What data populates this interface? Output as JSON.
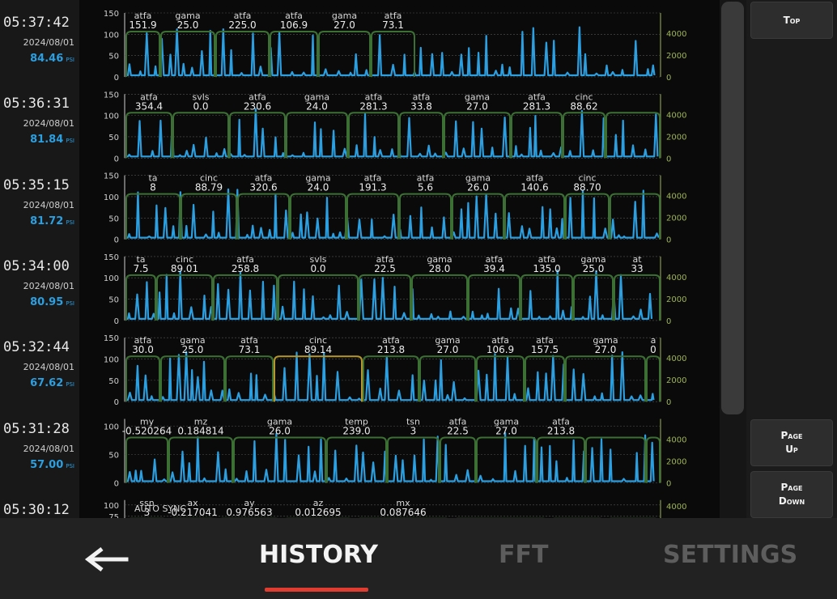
{
  "history_rows": [
    {
      "time": "05:37:42",
      "date": "2024/08/01",
      "pressure": "84.46",
      "unit": "PSI",
      "left_ticks": [
        "150",
        "100",
        "50",
        "0"
      ],
      "right_ticks": [
        "4000",
        "2000",
        "0"
      ],
      "names": [
        "atfa",
        "gama",
        "atfa",
        "atfa",
        "gama",
        "atfa"
      ],
      "values": [
        "151.9",
        "25.0",
        "225.0",
        "106.9",
        "27.0",
        "73.1"
      ]
    },
    {
      "time": "05:36:31",
      "date": "2024/08/01",
      "pressure": "81.84",
      "unit": "PSI",
      "left_ticks": [
        "150",
        "100",
        "50",
        "0"
      ],
      "right_ticks": [
        "4000",
        "2000",
        "0"
      ],
      "names": [
        "atfa",
        "svls",
        "atfa",
        "gama",
        "atfa",
        "atfa",
        "gama",
        "atfa",
        "cinc"
      ],
      "values": [
        "354.4",
        "0.0",
        "230.6",
        "24.0",
        "281.3",
        "33.8",
        "27.0",
        "281.3",
        "88.62"
      ]
    },
    {
      "time": "05:35:15",
      "date": "2024/08/01",
      "pressure": "81.72",
      "unit": "PSI",
      "left_ticks": [
        "150",
        "100",
        "50",
        "0"
      ],
      "right_ticks": [
        "4000",
        "2000",
        "0"
      ],
      "names": [
        "ta",
        "cinc",
        "atfa",
        "gama",
        "atfa",
        "atfa",
        "gama",
        "atfa",
        "cinc"
      ],
      "values": [
        "8",
        "88.79",
        "320.6",
        "24.0",
        "191.3",
        "5.6",
        "26.0",
        "140.6",
        "88.70"
      ]
    },
    {
      "time": "05:34:00",
      "date": "2024/08/01",
      "pressure": "80.95",
      "unit": "PSI",
      "left_ticks": [
        "150",
        "100",
        "50",
        "0"
      ],
      "right_ticks": [
        "4000",
        "2000",
        "0"
      ],
      "names": [
        "ta",
        "cinc",
        "atfa",
        "svls",
        "atfa",
        "gama",
        "atfa",
        "atfa",
        "gama",
        "at"
      ],
      "values": [
        "7.5",
        "89.01",
        "258.8",
        "0.0",
        "22.5",
        "28.0",
        "39.4",
        "135.0",
        "25.0",
        "33"
      ]
    },
    {
      "time": "05:32:44",
      "date": "2024/08/01",
      "pressure": "67.62",
      "unit": "PSI",
      "left_ticks": [
        "150",
        "100",
        "50",
        "0"
      ],
      "right_ticks": [
        "4000",
        "2000",
        "0"
      ],
      "names": [
        "atfa",
        "gama",
        "atfa",
        "cinc",
        "atfa",
        "gama",
        "atfa",
        "atfa",
        "gama",
        "a"
      ],
      "values": [
        "30.0",
        "25.0",
        "73.1",
        "89.14",
        "213.8",
        "27.0",
        "106.9",
        "157.5",
        "27.0",
        "0"
      ]
    },
    {
      "time": "05:31:28",
      "date": "2024/08/01",
      "pressure": "57.00",
      "unit": "PSI",
      "left_ticks": [
        "100",
        "50",
        "0"
      ],
      "right_ticks": [
        "4000",
        "2000",
        "0"
      ],
      "names": [
        "my",
        "mz",
        "gama",
        "temp",
        "tsn",
        "atfa",
        "gama",
        "atfa"
      ],
      "values": [
        "-0.520264",
        "0.184814",
        "26.0",
        "239.0",
        "3",
        "22.5",
        "27.0",
        "213.8"
      ]
    },
    {
      "time": "05:30:12",
      "date": "",
      "pressure": "",
      "unit": "",
      "left_ticks": [
        "100",
        "75"
      ],
      "right_ticks": [
        "4000"
      ],
      "badge": "AUTO SYNC",
      "names": [
        "ssn",
        "ax",
        "ay",
        "az",
        "mx"
      ],
      "values": [
        "3",
        "-0.217041",
        "0.976563",
        "0.012695",
        "0.087646"
      ]
    }
  ],
  "side_buttons": {
    "top": "Top",
    "page_up": [
      "Page",
      "Up"
    ],
    "page_down": [
      "Page",
      "Down"
    ]
  },
  "nav": {
    "history": "HISTORY",
    "fft": "FFT",
    "settings": "SETTINGS"
  },
  "colors": {
    "signal": "#2b9fe0",
    "segment": "#3c6f34",
    "highlight": "#b5972d",
    "axis_right": "#9db45a",
    "active_tab_underline": "#e03c2f"
  }
}
